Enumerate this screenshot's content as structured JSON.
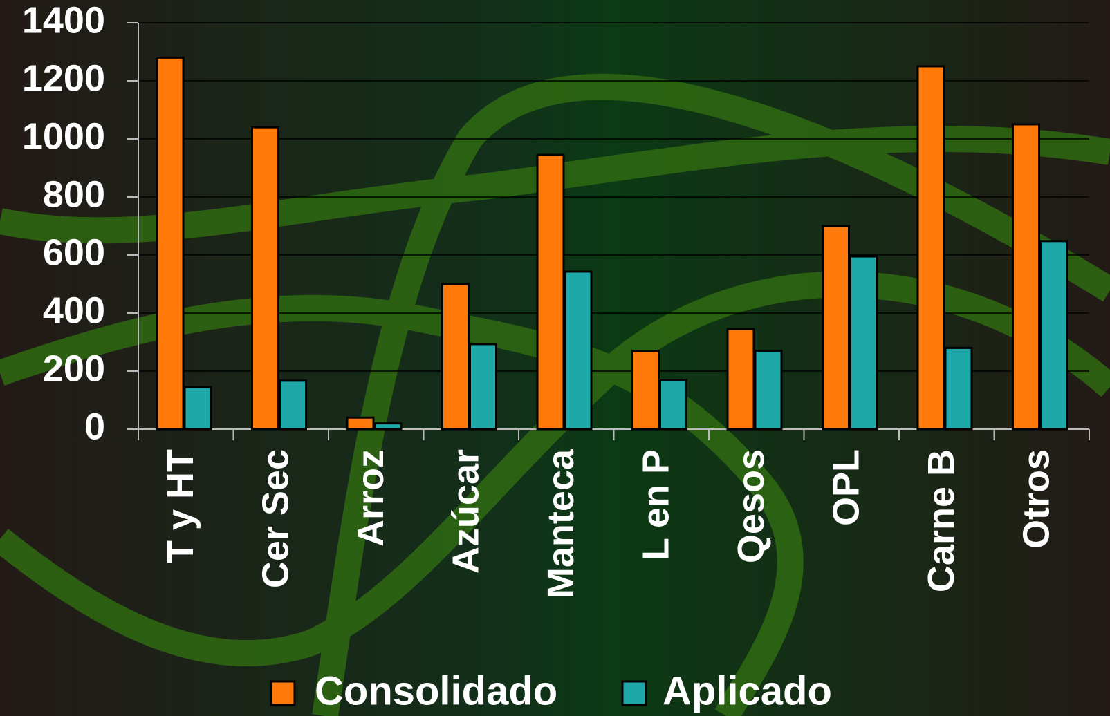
{
  "chart_data": {
    "type": "bar",
    "categories": [
      "T y HT",
      "Cer Sec",
      "Arroz",
      "Azúcar",
      "Manteca",
      "L en P",
      "Qesos",
      "OPL",
      "Carne B",
      "Otros"
    ],
    "series": [
      {
        "name": "Consolidado",
        "color": "#ff7a0a",
        "values": [
          1280,
          1040,
          40,
          500,
          945,
          270,
          345,
          700,
          1250,
          1050
        ]
      },
      {
        "name": "Aplicado",
        "color": "#1fa8a8",
        "values": [
          145,
          167,
          20,
          293,
          543,
          170,
          270,
          595,
          280,
          648
        ]
      }
    ],
    "ylim": [
      0,
      1400
    ],
    "yticks": [
      0,
      200,
      400,
      600,
      800,
      1000,
      1200,
      1400
    ],
    "grid": true,
    "legend": "bottom"
  }
}
